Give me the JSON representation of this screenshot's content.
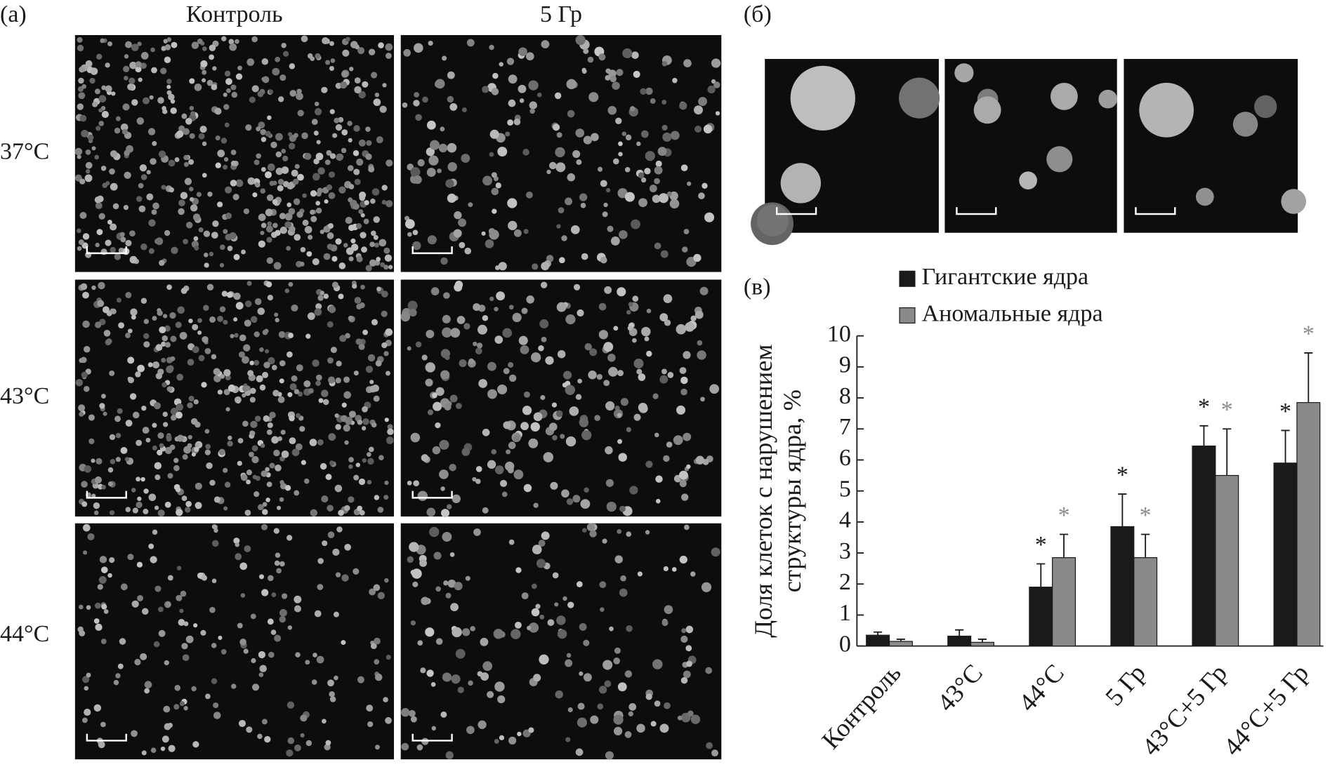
{
  "panel_a": {
    "label": "(а)",
    "columns": [
      "Контроль",
      "5 Гр"
    ],
    "rows": [
      "37°C",
      "43°C",
      "44°C"
    ]
  },
  "panel_b": {
    "label": "(б)"
  },
  "panel_c": {
    "label": "(в)"
  },
  "chart_data": {
    "type": "bar",
    "ylabel": [
      "Доля клеток с нарушением",
      "структуры ядра, %"
    ],
    "categories": [
      "Контроль",
      "43°C",
      "44°C",
      "5 Гр",
      "43°C+5 Гр",
      "44°C+5 Гр"
    ],
    "series": [
      {
        "name": "Гигантские ядра",
        "color": "#1a1a1a",
        "values": [
          0.35,
          0.32,
          1.9,
          3.85,
          6.45,
          5.9
        ],
        "errors": [
          0.1,
          0.2,
          0.75,
          1.05,
          0.65,
          1.05
        ],
        "significance": [
          null,
          null,
          "*",
          "*",
          "*",
          "*"
        ]
      },
      {
        "name": "Аномальные ядра",
        "color": "#8a8a8a",
        "values": [
          0.15,
          0.12,
          2.85,
          2.85,
          5.5,
          7.85
        ],
        "errors": [
          0.07,
          0.1,
          0.75,
          0.75,
          1.5,
          1.6
        ],
        "significance": [
          null,
          null,
          "*",
          "*",
          "*",
          "*"
        ]
      }
    ],
    "ylim": [
      0,
      10
    ],
    "yticks": [
      0,
      1,
      2,
      3,
      4,
      5,
      6,
      7,
      8,
      9,
      10
    ]
  }
}
